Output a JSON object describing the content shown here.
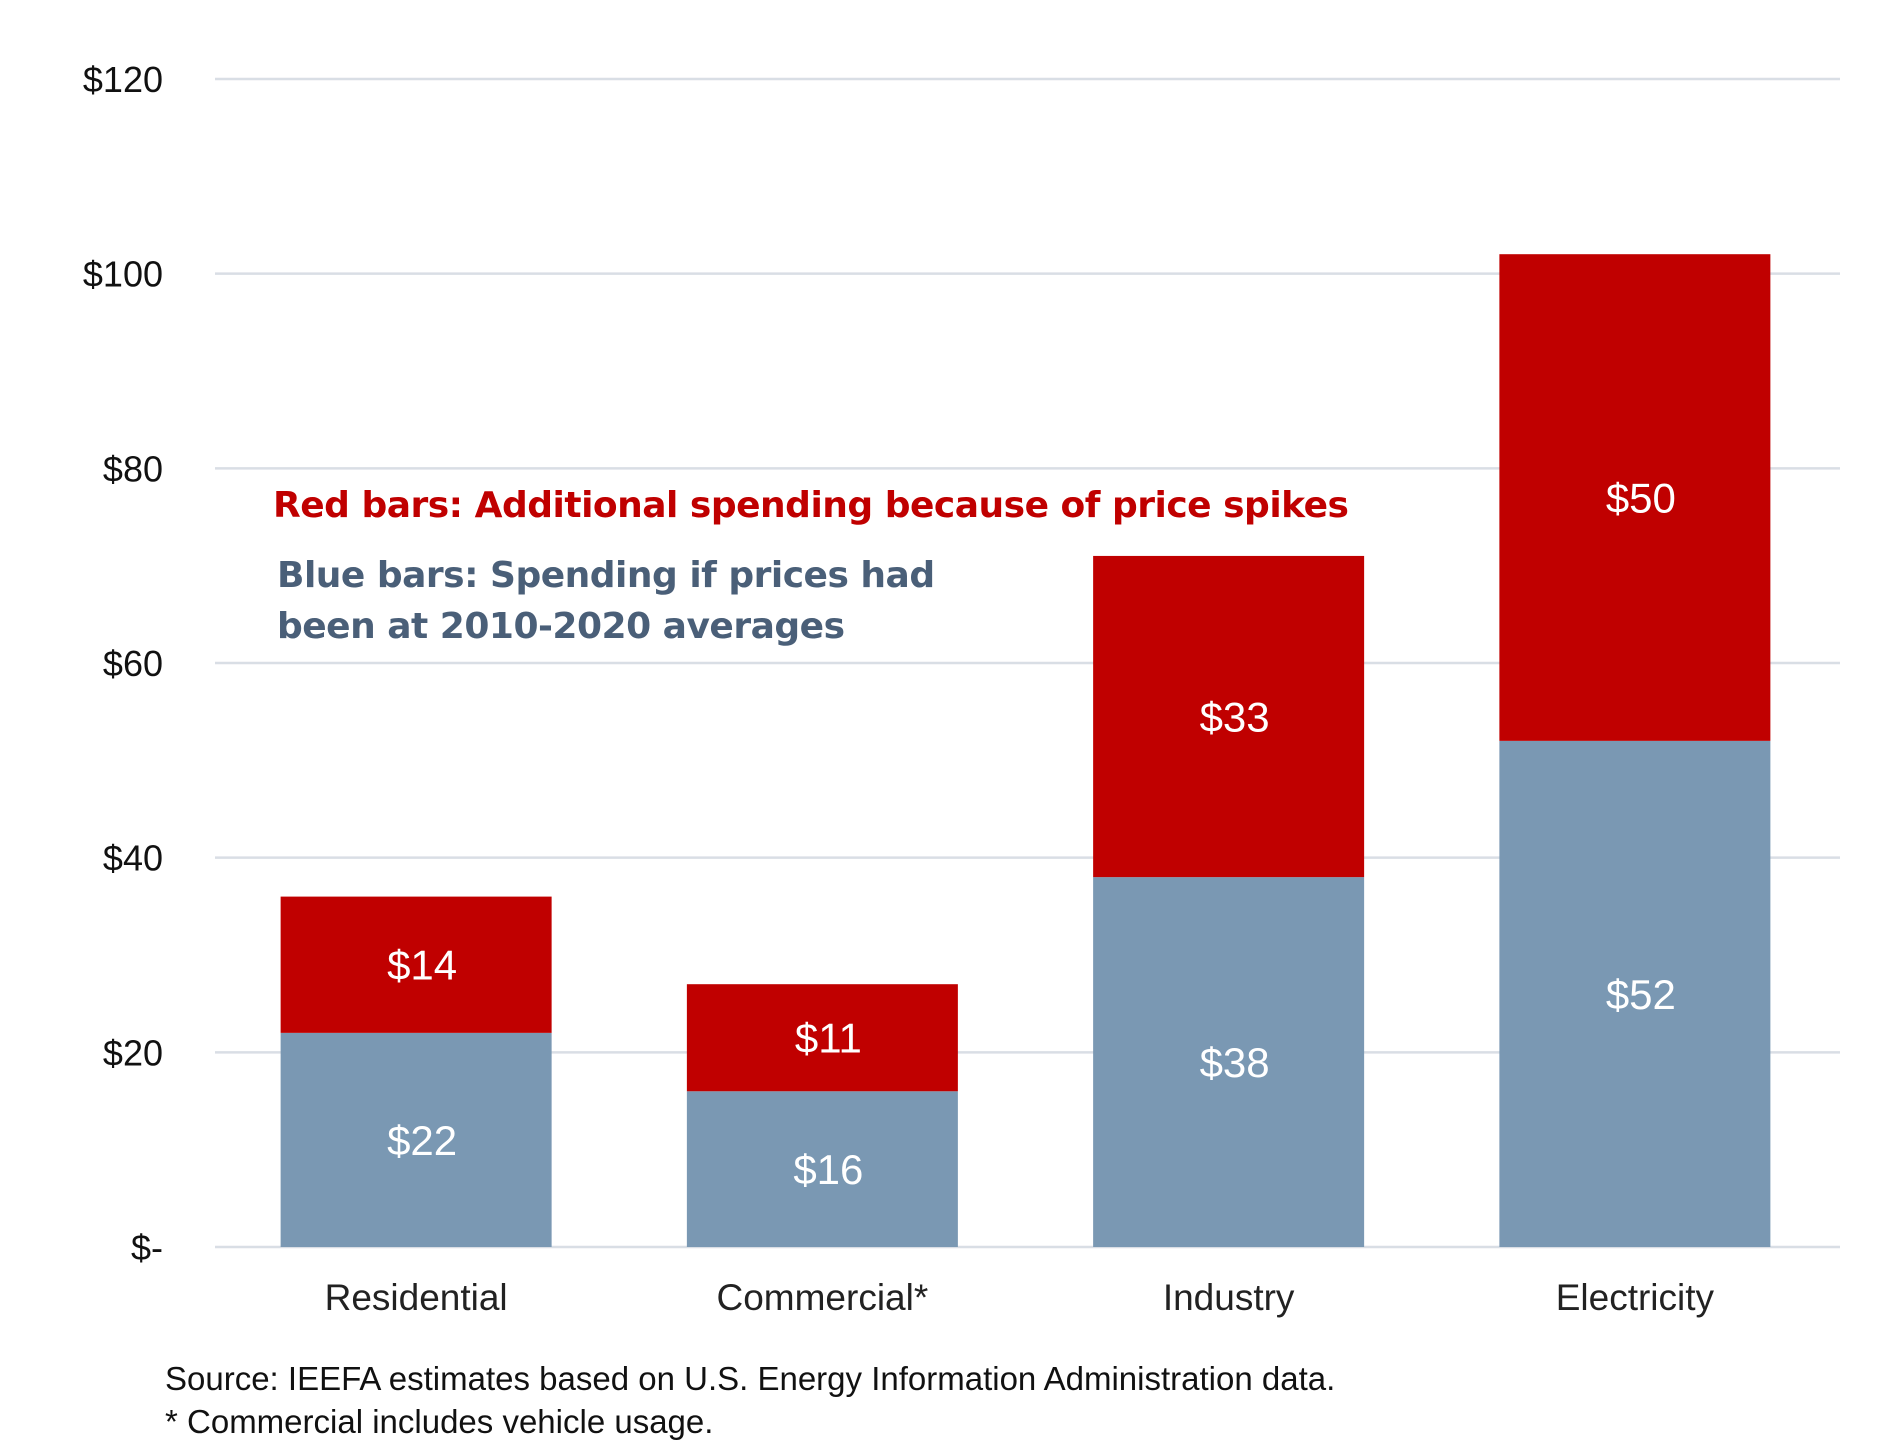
{
  "chart_data": {
    "type": "bar",
    "stacked": true,
    "categories": [
      "Residential",
      "Commercial*",
      "Industry",
      "Electricity"
    ],
    "series": [
      {
        "name": "Blue bars: Spending if prices had been at 2010-2020 averages",
        "values": [
          22,
          16,
          38,
          52
        ],
        "color": "#7A98B3"
      },
      {
        "name": "Red bars: Additional spending because of price spikes",
        "values": [
          14,
          11,
          33,
          50
        ],
        "color": "#C00000"
      }
    ],
    "data_labels": [
      [
        "$22",
        "$16",
        "$38",
        "$52"
      ],
      [
        "$14",
        "$11",
        "$33",
        "$50"
      ]
    ],
    "ylim": [
      0,
      120
    ],
    "yticks": [
      0,
      20,
      40,
      60,
      80,
      100,
      120
    ],
    "ytick_labels": [
      "$-",
      "$20",
      "$40",
      "$60",
      "$80",
      "$100",
      "$120"
    ],
    "grid": true,
    "legend_placement": "top-left (inline annotations)",
    "annotations": {
      "red": "Red bars: Additional spending because of price spikes",
      "blue_line1": "Blue bars: Spending if prices had",
      "blue_line2": "been at 2010-2020 averages"
    },
    "colors": {
      "red": "#C00000",
      "blue": "#7A98B3",
      "blue_text": "#4A5F78",
      "grid": "#D9DEE5"
    }
  },
  "footer": {
    "source": "Source:  IEEFA estimates based on U.S. Energy Information Administration data.",
    "note": "* Commercial includes vehicle usage."
  }
}
